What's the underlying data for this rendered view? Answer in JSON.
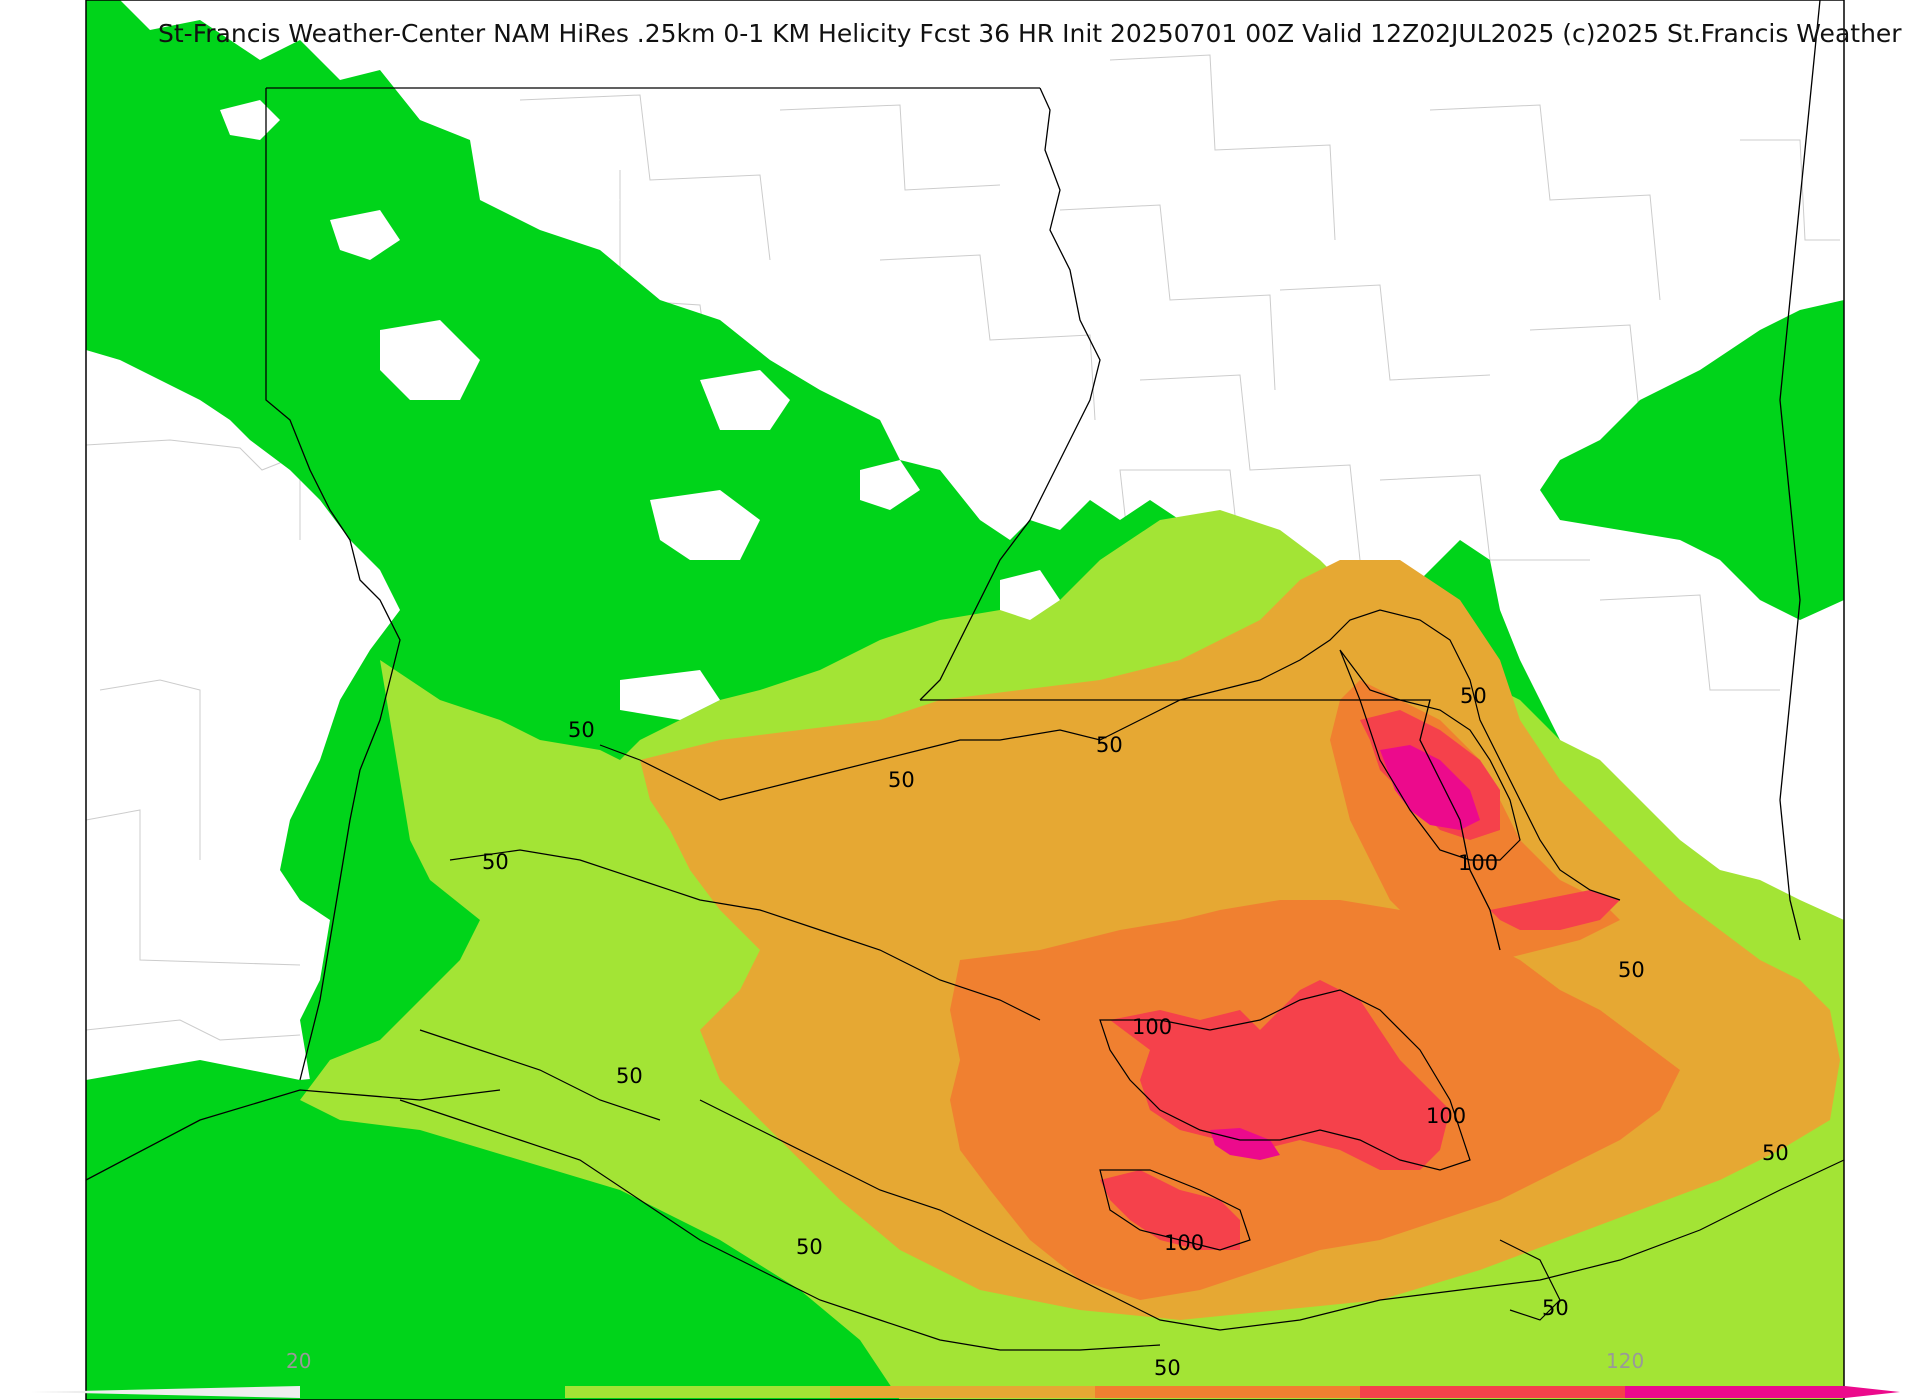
{
  "title": "St-Francis Weather-Center NAM HiRes .25km 0-1 KM Helicity Fcst 36 HR Init 20250701 00Z  Valid 12Z02JUL2025    (c)2025 St.Francis Weather",
  "colors": {
    "level_20_50": "#00d41a",
    "level_50_80": "#a3e435",
    "level_80_100": "#e6a833",
    "level_100_120": "#f08030",
    "level_120_150": "#f5414b",
    "level_150_plus": "#ec0a8c",
    "contour": "#000000",
    "state_border": "#000000",
    "county_border": "#c8c8c8",
    "background": "#ffffff"
  },
  "contour_labels": [
    {
      "id": "c1",
      "text": "50"
    },
    {
      "id": "c2",
      "text": "50"
    },
    {
      "id": "c3",
      "text": "50"
    },
    {
      "id": "c4",
      "text": "50"
    },
    {
      "id": "c5",
      "text": "50"
    },
    {
      "id": "c6",
      "text": "100"
    },
    {
      "id": "c7",
      "text": "50"
    },
    {
      "id": "c8",
      "text": "100"
    },
    {
      "id": "c9",
      "text": "100"
    },
    {
      "id": "c10",
      "text": "50"
    },
    {
      "id": "c11",
      "text": "50"
    },
    {
      "id": "c12",
      "text": "100"
    },
    {
      "id": "c13",
      "text": "50"
    },
    {
      "id": "c14",
      "text": "50"
    },
    {
      "id": "c15",
      "text": "50"
    }
  ],
  "colorbar": {
    "label_min": "20",
    "label_max": "120",
    "segments": [
      "#00d41a",
      "#a3e435",
      "#e6a833",
      "#f08030",
      "#f5414b",
      "#ec0a8c"
    ]
  }
}
